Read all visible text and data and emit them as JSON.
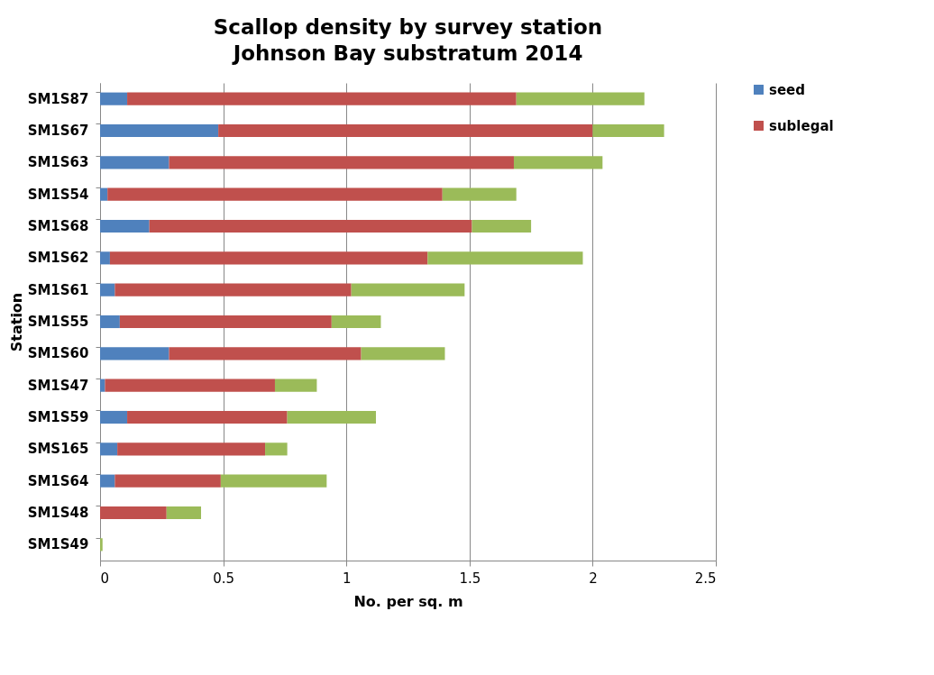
{
  "chart_data": {
    "type": "bar",
    "orientation": "horizontal",
    "stacked": true,
    "title": "Scallop density by survey station",
    "subtitle": "Johnson Bay substratum 2014",
    "xlabel": "No. per sq. m",
    "ylabel": "Station",
    "categories": [
      "SM1S87",
      "SM1S67",
      "SM1S63",
      "SM1S54",
      "SM1S68",
      "SM1S62",
      "SM1S61",
      "SM1S55",
      "SM1S60",
      "SM1S47",
      "SM1S59",
      "SMS165",
      "SM1S64",
      "SM1S48",
      "SM1S49"
    ],
    "series": [
      {
        "name": "seed",
        "color": "#4f81bd",
        "values": [
          0.11,
          0.48,
          0.28,
          0.03,
          0.2,
          0.04,
          0.06,
          0.08,
          0.28,
          0.02,
          0.11,
          0.07,
          0.06,
          0,
          0
        ]
      },
      {
        "name": "sublegal",
        "color": "#c0504d",
        "values": [
          1.58,
          1.52,
          1.4,
          1.36,
          1.31,
          1.29,
          0.96,
          0.86,
          0.78,
          0.69,
          0.65,
          0.6,
          0.43,
          0.27,
          null
        ]
      },
      {
        "color": "#9bbb59",
        "values": [
          0.52,
          0.29,
          0.36,
          0.3,
          0.24,
          0.63,
          0.46,
          0.2,
          0.34,
          0.17,
          0.36,
          0.09,
          0.43,
          0.14,
          0.01
        ]
      }
    ],
    "xlim": [
      0,
      2.5
    ],
    "xticks": [
      0,
      0.5,
      1,
      1.5,
      2,
      2.5
    ],
    "grid": "x",
    "legend": "right"
  }
}
